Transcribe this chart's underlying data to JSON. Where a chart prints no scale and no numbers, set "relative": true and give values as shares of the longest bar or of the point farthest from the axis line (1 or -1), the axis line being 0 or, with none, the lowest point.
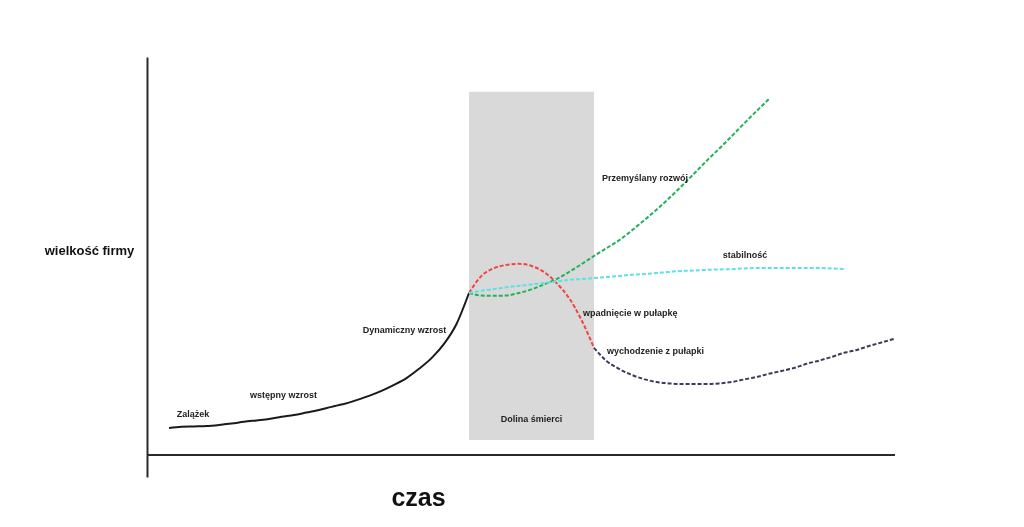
{
  "chart_data": {
    "type": "line",
    "relative": true,
    "xlabel": "czas",
    "ylabel": "wielkość firmy",
    "categories": [
      null,
      null,
      null,
      null,
      null,
      null,
      null,
      null,
      null,
      null,
      null,
      null,
      null,
      null,
      null,
      null,
      null,
      null,
      null,
      null,
      null,
      null,
      null,
      null,
      null,
      null,
      null,
      null,
      null,
      null,
      null,
      null,
      null,
      null,
      null,
      null,
      null,
      null,
      null,
      null,
      null,
      null,
      null,
      null,
      null,
      null,
      null,
      null,
      null,
      null,
      null,
      null,
      null,
      null,
      null,
      null,
      null,
      null,
      null
    ],
    "series": [
      {
        "name": "Zalążek",
        "color": "#1a1a1a",
        "line_style": "solid",
        "values": [
          0.076,
          0.079,
          0.08,
          0.081,
          0.084,
          null,
          null,
          null,
          null,
          null,
          null,
          null,
          null,
          null,
          null,
          null,
          null,
          null,
          null,
          null,
          null,
          null,
          null,
          null,
          null,
          null,
          null,
          null,
          null,
          null,
          null,
          null,
          null,
          null,
          null,
          null,
          null,
          null,
          null,
          null,
          null,
          null,
          null,
          null,
          null,
          null,
          null,
          null,
          null,
          null,
          null,
          null,
          null,
          null,
          null,
          null,
          null,
          null,
          null
        ]
      },
      {
        "name": "wstępny wzrost",
        "color": "#1a1a1a",
        "line_style": "solid",
        "values": [
          null,
          null,
          null,
          null,
          0.084,
          0.088,
          0.093,
          0.097,
          0.101,
          0.107,
          0.112,
          0.119,
          0.126,
          0.135,
          0.143,
          null,
          null,
          null,
          null,
          null,
          null,
          null,
          null,
          null,
          null,
          null,
          null,
          null,
          null,
          null,
          null,
          null,
          null,
          null,
          null,
          null,
          null,
          null,
          null,
          null,
          null,
          null,
          null,
          null,
          null,
          null,
          null,
          null,
          null,
          null,
          null,
          null,
          null,
          null,
          null,
          null,
          null,
          null,
          null
        ]
      },
      {
        "name": "Dynamiczny wzrost",
        "color": "#1a1a1a",
        "line_style": "solid",
        "values": [
          null,
          null,
          null,
          null,
          null,
          null,
          null,
          null,
          null,
          null,
          null,
          null,
          null,
          null,
          0.143,
          0.154,
          0.166,
          0.18,
          0.197,
          0.216,
          0.242,
          0.272,
          0.312,
          0.368,
          0.455,
          null,
          null,
          null,
          null,
          null,
          null,
          null,
          null,
          null,
          null,
          null,
          null,
          null,
          null,
          null,
          null,
          null,
          null,
          null,
          null,
          null,
          null,
          null,
          null,
          null,
          null,
          null,
          null,
          null,
          null,
          null,
          null,
          null,
          null
        ]
      },
      {
        "name": "wpadnięcie w pułapkę",
        "color": "#f04545",
        "line_style": "dashed",
        "values": [
          null,
          null,
          null,
          null,
          null,
          null,
          null,
          null,
          null,
          null,
          null,
          null,
          null,
          null,
          null,
          null,
          null,
          null,
          null,
          null,
          null,
          null,
          null,
          null,
          0.455,
          0.503,
          0.525,
          0.534,
          0.537,
          0.531,
          0.514,
          0.483,
          0.441,
          0.379,
          0.301,
          null,
          null,
          null,
          null,
          null,
          null,
          null,
          null,
          null,
          null,
          null,
          null,
          null,
          null,
          null,
          null,
          null,
          null,
          null,
          null,
          null,
          null,
          null,
          null
        ]
      },
      {
        "name": "Przemyślany rozwój",
        "color": "#1fb25a",
        "line_style": "dashed",
        "values": [
          null,
          null,
          null,
          null,
          null,
          null,
          null,
          null,
          null,
          null,
          null,
          null,
          null,
          null,
          null,
          null,
          null,
          null,
          null,
          null,
          null,
          null,
          null,
          null,
          0.455,
          0.448,
          0.447,
          0.448,
          0.455,
          0.465,
          0.479,
          0.494,
          0.514,
          0.536,
          0.559,
          0.581,
          0.603,
          0.63,
          0.659,
          0.689,
          0.721,
          0.755,
          0.79,
          0.826,
          0.86,
          0.895,
          0.931,
          0.966,
          1.0,
          null,
          null,
          null,
          null,
          null,
          null,
          null,
          null,
          null,
          null
        ]
      },
      {
        "name": "stabilność",
        "color": "#5ce1e6",
        "line_style": "dashed",
        "values": [
          null,
          null,
          null,
          null,
          null,
          null,
          null,
          null,
          null,
          null,
          null,
          null,
          null,
          null,
          null,
          null,
          null,
          null,
          null,
          null,
          null,
          null,
          null,
          null,
          0.455,
          0.461,
          0.466,
          0.471,
          0.475,
          0.479,
          0.483,
          0.487,
          0.492,
          0.494,
          0.497,
          0.5,
          0.503,
          0.506,
          0.508,
          0.511,
          0.514,
          0.517,
          0.518,
          0.52,
          0.521,
          0.522,
          0.524,
          0.525,
          0.525,
          0.525,
          0.525,
          0.525,
          0.525,
          0.524,
          0.522,
          null,
          null,
          null,
          null
        ]
      },
      {
        "name": "wychodzenie z pułapki",
        "color": "#3b3b58",
        "line_style": "dashed",
        "values": [
          null,
          null,
          null,
          null,
          null,
          null,
          null,
          null,
          null,
          null,
          null,
          null,
          null,
          null,
          null,
          null,
          null,
          null,
          null,
          null,
          null,
          null,
          null,
          null,
          null,
          null,
          null,
          null,
          null,
          null,
          null,
          null,
          null,
          null,
          0.301,
          0.264,
          0.242,
          0.225,
          0.213,
          0.205,
          0.201,
          0.199,
          0.199,
          0.199,
          0.201,
          0.205,
          0.212,
          0.219,
          0.228,
          0.236,
          0.244,
          0.256,
          0.265,
          0.275,
          0.287,
          0.295,
          0.306,
          0.316,
          0.326
        ]
      }
    ],
    "annotations": [
      "Dolina śmierci"
    ]
  }
}
